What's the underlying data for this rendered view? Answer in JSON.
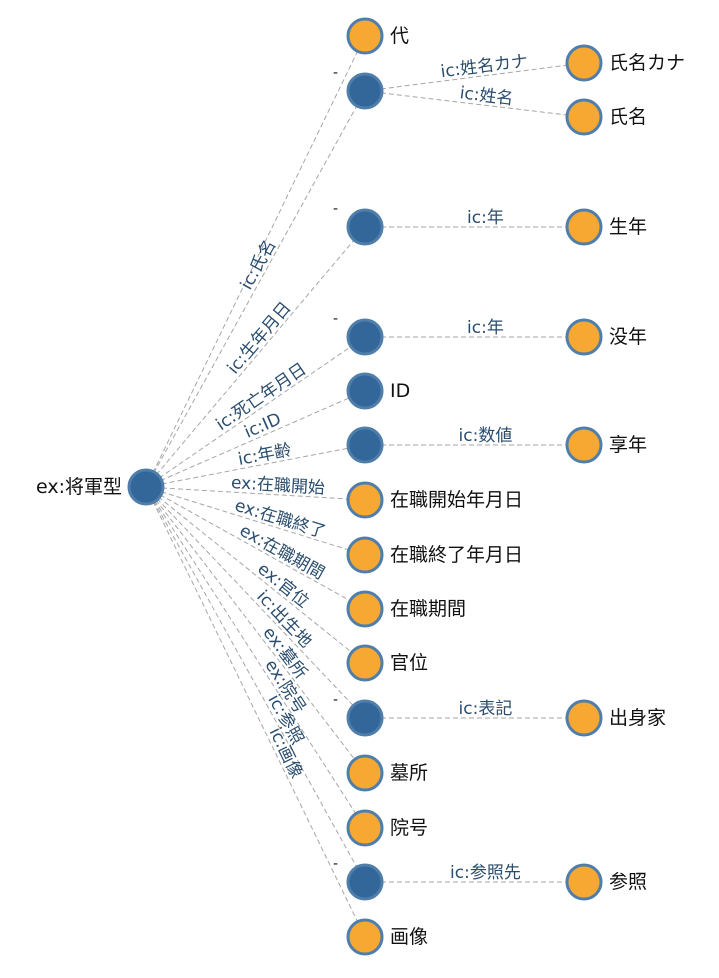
{
  "root": {
    "label": "ex:将軍型"
  },
  "branches": [
    {
      "edge": "",
      "kind": "literal",
      "label": "代"
    },
    {
      "edge": "ic:氏名",
      "kind": "blank",
      "label": "-",
      "children": [
        {
          "edge": "ic:姓名カナ",
          "label": "氏名カナ"
        },
        {
          "edge": "ic:姓名",
          "label": "氏名"
        }
      ]
    },
    {
      "edge": "ic:生年月日",
      "kind": "blank",
      "label": "-",
      "children": [
        {
          "edge": "ic:年",
          "label": "生年"
        }
      ]
    },
    {
      "edge": "ic:死亡年月日",
      "kind": "blank",
      "label": "-",
      "children": [
        {
          "edge": "ic:年",
          "label": "没年"
        }
      ]
    },
    {
      "edge": "ic:ID",
      "kind": "blank",
      "label": "ID"
    },
    {
      "edge": "ic:年齢",
      "kind": "blank",
      "label": "",
      "children": [
        {
          "edge": "ic:数値",
          "label": "享年"
        }
      ]
    },
    {
      "edge": "ex:在職開始",
      "kind": "literal",
      "label": "在職開始年月日"
    },
    {
      "edge": "ex:在職終了",
      "kind": "literal",
      "label": "在職終了年月日"
    },
    {
      "edge": "ex:在職期間",
      "kind": "literal",
      "label": "在職期間"
    },
    {
      "edge": "ex:官位",
      "kind": "literal",
      "label": "官位"
    },
    {
      "edge": "ic:出生地",
      "kind": "blank",
      "label": "-",
      "children": [
        {
          "edge": "ic:表記",
          "label": "出身家"
        }
      ]
    },
    {
      "edge": "ex:墓所",
      "kind": "literal",
      "label": "墓所"
    },
    {
      "edge": "ex:院号",
      "kind": "literal",
      "label": "院号"
    },
    {
      "edge": "ic:参照",
      "kind": "blank",
      "label": "-",
      "children": [
        {
          "edge": "ic:参照先",
          "label": "参照"
        }
      ]
    },
    {
      "edge": "ic:画像",
      "kind": "literal",
      "label": "画像"
    }
  ]
}
